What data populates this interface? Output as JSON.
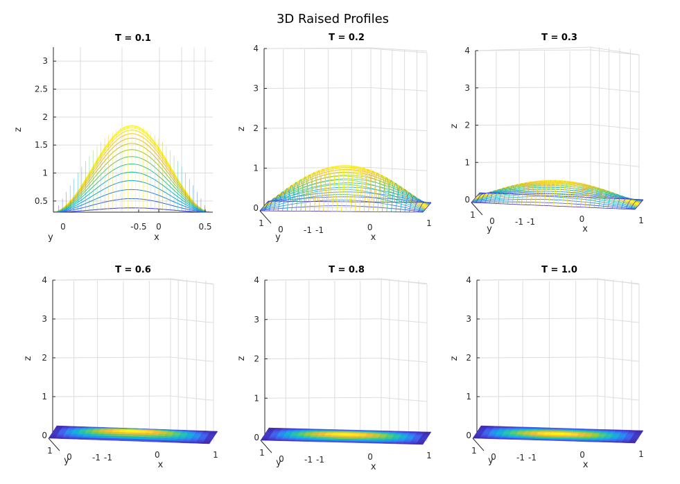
{
  "figure": {
    "title": "3D Raised Profiles"
  },
  "chart_data": [
    {
      "type": "surface",
      "title": "T = 0.1",
      "xlabel": "x",
      "ylabel": "y",
      "zlabel": "z",
      "peak_z": 1.85,
      "render": "mesh",
      "z_ticks": [
        "0.5",
        "1",
        "1.5",
        "2",
        "2.5",
        "3"
      ],
      "x_ticks": [
        "-0.5",
        "0",
        "0.5"
      ],
      "y_ticks": [
        "0"
      ],
      "zlim": [
        0.3,
        3.25
      ]
    },
    {
      "type": "surface",
      "title": "T = 0.2",
      "xlabel": "x",
      "ylabel": "y",
      "zlabel": "z",
      "peak_z": 1.03,
      "render": "mesh",
      "z_ticks": [
        "0",
        "1",
        "2",
        "3",
        "4"
      ],
      "x_ticks": [
        "-1",
        "0",
        "1"
      ],
      "y_ticks": [
        "1",
        "0",
        "-1"
      ],
      "zlim": [
        0,
        4
      ]
    },
    {
      "type": "surface",
      "title": "T = 0.3",
      "xlabel": "x",
      "ylabel": "y",
      "zlabel": "z",
      "peak_z": 0.55,
      "render": "mesh",
      "z_ticks": [
        "0",
        "1",
        "2",
        "3",
        "4"
      ],
      "x_ticks": [
        "-1",
        "0",
        "1"
      ],
      "y_ticks": [
        "1",
        "0",
        "-1"
      ],
      "zlim": [
        0,
        4
      ]
    },
    {
      "type": "surface",
      "title": "T = 0.6",
      "xlabel": "x",
      "ylabel": "y",
      "zlabel": "z",
      "peak_z": 0.1,
      "render": "filled",
      "z_ticks": [
        "0",
        "1",
        "2",
        "3",
        "4"
      ],
      "x_ticks": [
        "-1",
        "0",
        "1"
      ],
      "y_ticks": [
        "1",
        "0",
        "-1"
      ],
      "zlim": [
        0,
        4
      ]
    },
    {
      "type": "surface",
      "title": "T = 0.8",
      "xlabel": "x",
      "ylabel": "y",
      "zlabel": "z",
      "peak_z": 0.05,
      "render": "filled",
      "z_ticks": [
        "0",
        "1",
        "2",
        "3",
        "4"
      ],
      "x_ticks": [
        "-1",
        "0",
        "1"
      ],
      "y_ticks": [
        "1",
        "0",
        "-1"
      ],
      "zlim": [
        0,
        4
      ]
    },
    {
      "type": "surface",
      "title": "T = 1.0",
      "xlabel": "x",
      "ylabel": "y",
      "zlabel": "z",
      "peak_z": 0.02,
      "render": "filled",
      "z_ticks": [
        "0",
        "1",
        "2",
        "3",
        "4"
      ],
      "x_ticks": [
        "-1",
        "0",
        "1"
      ],
      "y_ticks": [
        "1",
        "0",
        "-1"
      ],
      "zlim": [
        0,
        4
      ]
    }
  ]
}
